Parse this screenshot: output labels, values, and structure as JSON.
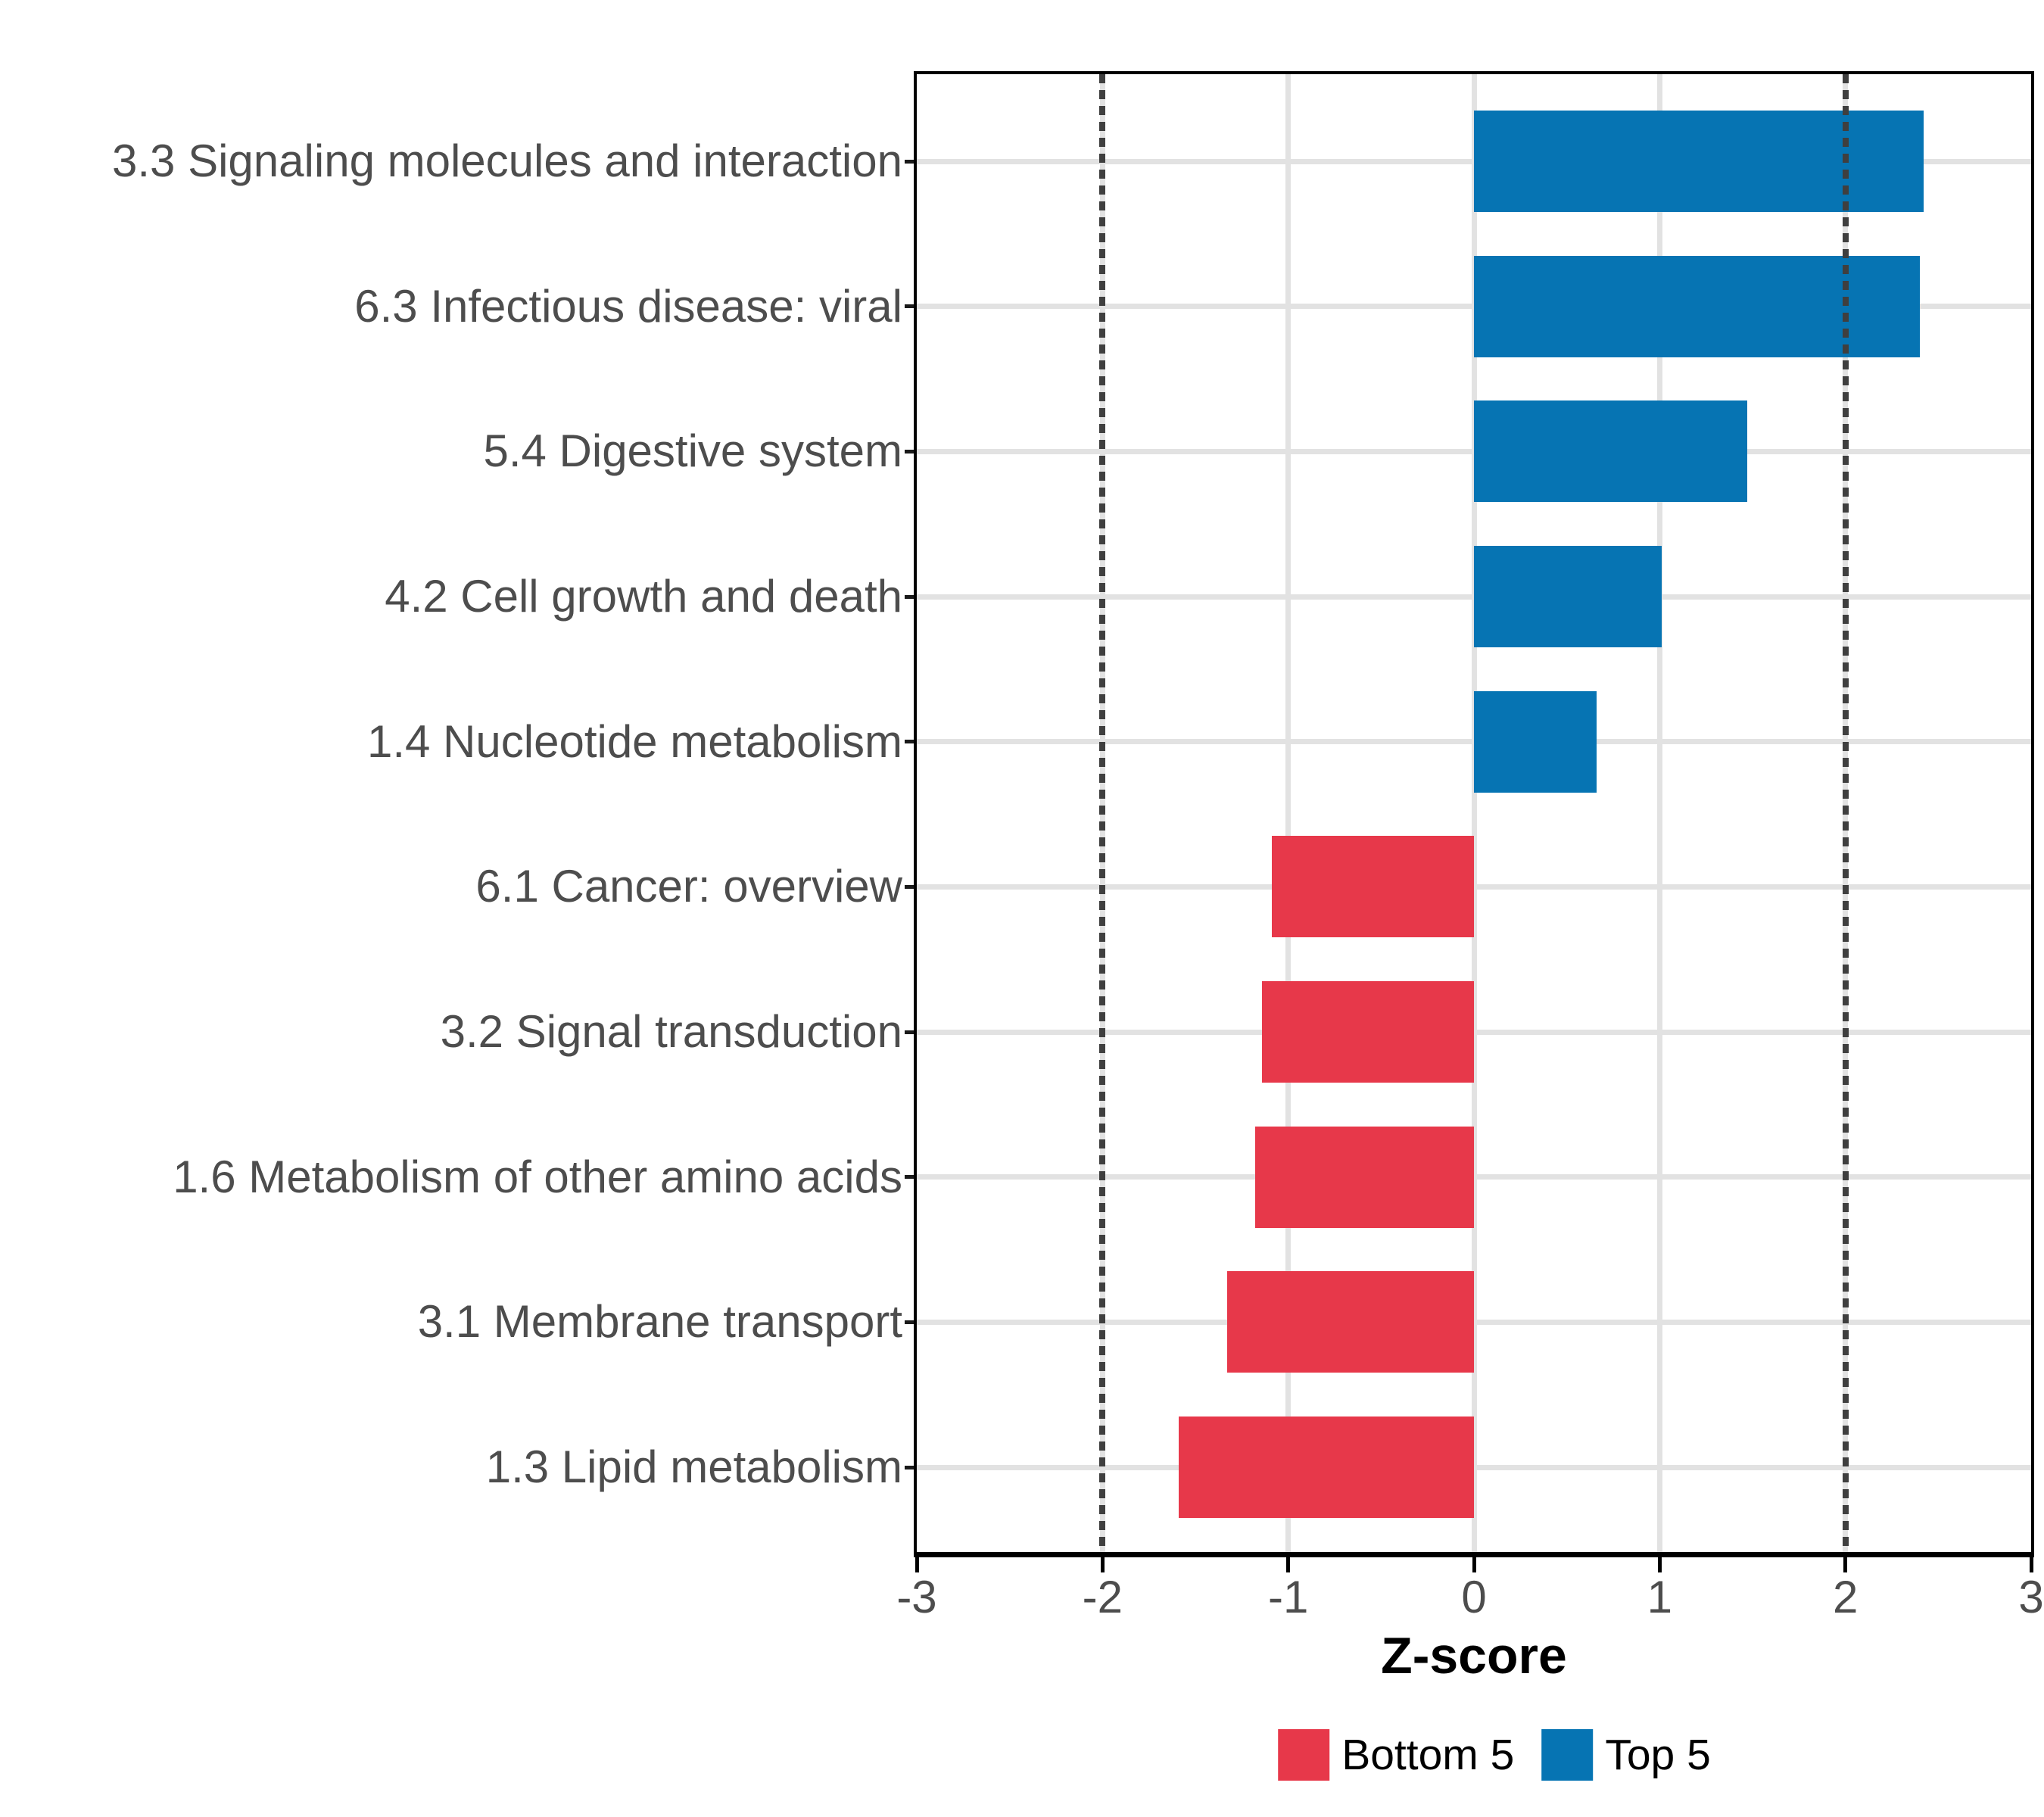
{
  "chart_data": {
    "type": "bar",
    "orientation": "horizontal",
    "title": "",
    "xlabel": "Z-score",
    "ylabel": "",
    "xlim": [
      -3,
      3
    ],
    "x_tick_labels": [
      "-3",
      "-2",
      "-1",
      "0",
      "1",
      "2",
      "3"
    ],
    "x_tick_values": [
      -3,
      -2,
      -1,
      0,
      1,
      2,
      3
    ],
    "grid_x_values": [
      -2,
      -1,
      0,
      1,
      2
    ],
    "reference_lines": [
      -2,
      2
    ],
    "categories": [
      "3.3 Signaling molecules and interaction",
      "6.3 Infectious disease: viral",
      "5.4 Digestive system",
      "4.2 Cell growth and death",
      "1.4 Nucleotide metabolism",
      "6.1 Cancer: overview",
      "3.2 Signal transduction",
      "1.6 Metabolism of other amino acids",
      "3.1 Membrane transport",
      "1.3 Lipid metabolism"
    ],
    "values": [
      2.42,
      2.4,
      1.47,
      1.01,
      0.66,
      -1.09,
      -1.14,
      -1.18,
      -1.33,
      -1.59
    ],
    "groups": [
      "Top 5",
      "Top 5",
      "Top 5",
      "Top 5",
      "Top 5",
      "Bottom 5",
      "Bottom 5",
      "Bottom 5",
      "Bottom 5",
      "Bottom 5"
    ],
    "legend": [
      {
        "label": "Bottom 5",
        "color": "#E7384A"
      },
      {
        "label": "Top 5",
        "color": "#0674B3"
      }
    ],
    "legend_position": "bottom",
    "grid": true
  },
  "colors": {
    "top5": "#0674B3",
    "bottom5": "#E7384A",
    "gridline": "#E2E2E2",
    "reference_line": "#3F3F3F",
    "axis_text": "#4D4D4D",
    "axis_line": "#000000",
    "background": "#FFFFFF"
  }
}
